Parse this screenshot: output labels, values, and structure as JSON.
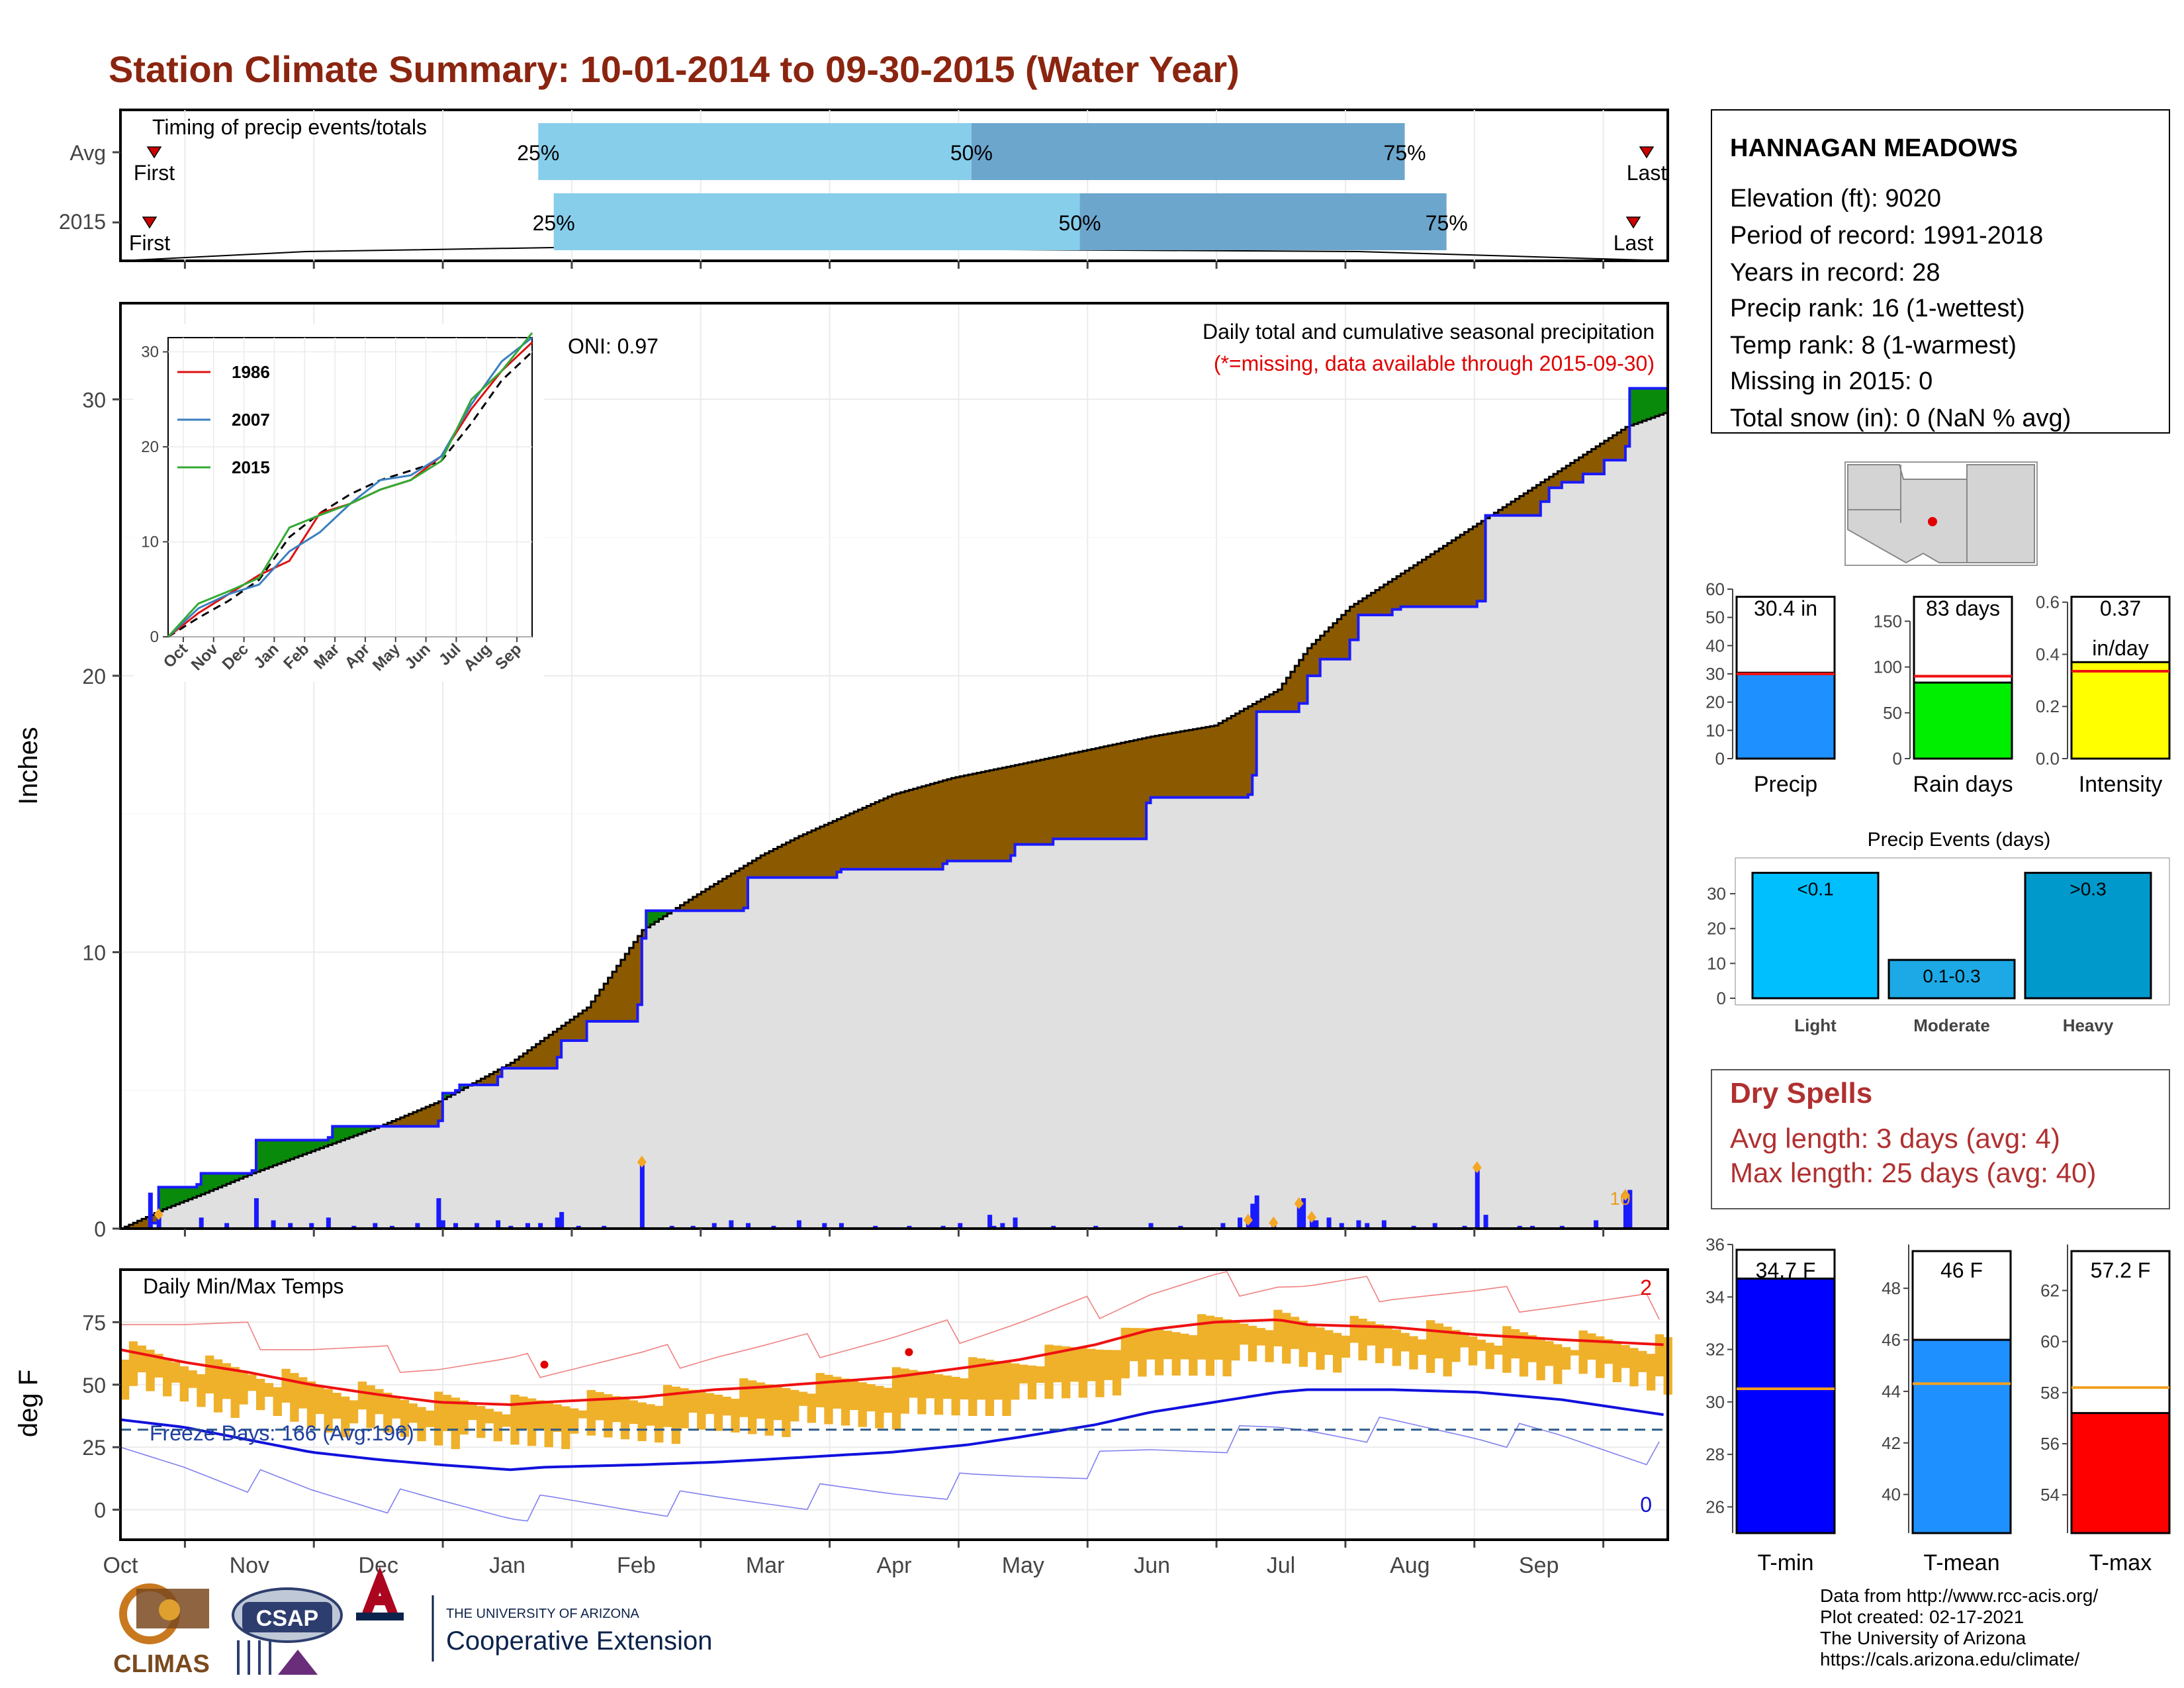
{
  "title": "Station Climate Summary: 10-01-2014 to 09-30-2015 (Water Year)",
  "timing": {
    "label": "Timing of precip events/totals",
    "rows": [
      {
        "name": "Avg",
        "p25": 0.27,
        "p50": 0.55,
        "p75": 0.83,
        "first_label": "First",
        "last_label": "Last"
      },
      {
        "name": "2015",
        "p25": 0.28,
        "p50": 0.62,
        "p75": 0.857,
        "first_label": "First",
        "last_label": "Last"
      }
    ],
    "labels": {
      "p25": "25%",
      "p50": "50%",
      "p75": "75%"
    },
    "colors": {
      "light": "#87ceeb",
      "dark": "#6ca6cd",
      "marker": "#cc0000"
    }
  },
  "precip_panel": {
    "ylabel": "Inches",
    "annotation": "Daily total and cumulative seasonal precipitation",
    "missing_note": "(*=missing, data available through 2015-09-30)",
    "oni": "ONI: 0.97",
    "yticks": [
      "0",
      "10",
      "20",
      "30"
    ],
    "top_value_label": "10"
  },
  "inset": {
    "legend": [
      {
        "year": "1986",
        "color": "#dd1111"
      },
      {
        "year": "2007",
        "color": "#3a7fc0"
      },
      {
        "year": "2015",
        "color": "#33aa33"
      }
    ],
    "yticks": [
      "0",
      "10",
      "20",
      "30"
    ],
    "xticks": [
      "Oct",
      "Nov",
      "Dec",
      "Jan",
      "Feb",
      "Mar",
      "Apr",
      "May",
      "Jun",
      "Jul",
      "Aug",
      "Sep"
    ]
  },
  "chart_data": {
    "type": "area",
    "title": "Daily total and cumulative seasonal precipitation",
    "ylabel": "Inches",
    "ylim": [
      0,
      33
    ],
    "x_unit": "day of water year (0 = Oct 1)",
    "cumulative_avg": {
      "x": [
        0,
        10,
        20,
        31,
        45,
        61,
        75,
        92,
        100,
        110,
        123,
        135,
        151,
        160,
        182,
        196,
        212,
        243,
        258,
        273,
        280,
        290,
        300,
        310,
        330,
        355,
        364
      ],
      "y": [
        0,
        0.7,
        1.3,
        2.0,
        2.8,
        3.7,
        4.6,
        6.0,
        6.9,
        8.0,
        10.8,
        12.0,
        13.5,
        14.2,
        15.7,
        16.3,
        16.8,
        17.8,
        18.2,
        19.5,
        21.0,
        22.5,
        23.5,
        24.5,
        26.5,
        29.0,
        29.5
      ]
    },
    "cumulative_2015": {
      "x": [
        0,
        7,
        9,
        18,
        19,
        31,
        32,
        49,
        50,
        75,
        76,
        79,
        80,
        89,
        90,
        103,
        104,
        110,
        122,
        123,
        124,
        147,
        148,
        169,
        170,
        194,
        195,
        210,
        211,
        220,
        242,
        243,
        266,
        267,
        268,
        278,
        280,
        283,
        290,
        292,
        300,
        302,
        320,
        322,
        335,
        337,
        340,
        345,
        350,
        355,
        356,
        364
      ],
      "y": [
        0,
        0.2,
        1.5,
        1.6,
        2.0,
        2.1,
        3.2,
        3.3,
        3.7,
        3.9,
        4.9,
        5.0,
        5.2,
        5.5,
        5.8,
        6.2,
        6.8,
        7.5,
        8.1,
        10.5,
        11.5,
        11.6,
        12.7,
        12.9,
        13.0,
        13.2,
        13.3,
        13.5,
        13.9,
        14.1,
        15.4,
        15.6,
        15.7,
        16.4,
        18.7,
        19.0,
        20.0,
        20.6,
        21.3,
        22.2,
        22.4,
        22.5,
        22.7,
        25.8,
        26.3,
        26.8,
        27.0,
        27.3,
        27.8,
        28.3,
        30.4,
        30.4
      ]
    },
    "daily_2015": {
      "x": [
        7,
        9,
        19,
        25,
        32,
        36,
        40,
        45,
        49,
        55,
        60,
        64,
        70,
        75,
        76,
        79,
        84,
        89,
        92,
        96,
        99,
        103,
        104,
        108,
        114,
        123,
        130,
        135,
        140,
        144,
        148,
        154,
        160,
        166,
        170,
        178,
        186,
        194,
        198,
        205,
        206,
        208,
        211,
        220,
        230,
        243,
        250,
        260,
        264,
        266,
        267,
        268,
        272,
        278,
        279,
        281,
        282,
        285,
        288,
        292,
        294,
        298,
        305,
        310,
        317,
        320,
        322,
        330,
        333,
        340,
        348,
        355,
        356
      ],
      "y": [
        1.3,
        0.5,
        0.4,
        0.2,
        1.1,
        0.3,
        0.2,
        0.2,
        0.4,
        0.1,
        0.2,
        0.1,
        0.2,
        1.1,
        0.3,
        0.2,
        0.2,
        0.3,
        0.1,
        0.2,
        0.2,
        0.4,
        0.6,
        0.1,
        0.1,
        2.4,
        0.1,
        0.1,
        0.2,
        0.3,
        0.2,
        0.1,
        0.3,
        0.2,
        0.2,
        0.1,
        0.1,
        0.1,
        0.2,
        0.5,
        0.1,
        0.2,
        0.4,
        0.1,
        0.1,
        0.2,
        0.1,
        0.2,
        0.4,
        0.3,
        0.9,
        1.2,
        0.2,
        0.9,
        1.1,
        0.4,
        0.3,
        0.4,
        0.2,
        0.3,
        0.2,
        0.3,
        0.1,
        0.2,
        0.1,
        2.2,
        0.5,
        0.1,
        0.1,
        0.1,
        0.3,
        1.2,
        1.4
      ]
    },
    "daily_top_markers_x": [
      9,
      123,
      266,
      272,
      278,
      281,
      320,
      355
    ],
    "inset_series": {
      "x_months": [
        0,
        1,
        2,
        3,
        4,
        5,
        6,
        7,
        8,
        9,
        10,
        11,
        12
      ],
      "avg": [
        0,
        2.0,
        3.8,
        6.0,
        10.5,
        13.0,
        15.0,
        16.5,
        17.5,
        18.5,
        22.5,
        27.0,
        30.0
      ],
      "1986": [
        0,
        2.5,
        4.5,
        6.5,
        8.0,
        13.0,
        14.0,
        15.5,
        16.5,
        19.0,
        24.0,
        28.0,
        31.0
      ],
      "2007": [
        0,
        3.0,
        4.5,
        5.5,
        9.0,
        11.0,
        14.0,
        16.5,
        17.0,
        19.0,
        24.5,
        29.0,
        31.5
      ],
      "2015": [
        0,
        3.5,
        4.8,
        6.2,
        11.5,
        12.8,
        14.0,
        15.5,
        16.5,
        18.5,
        25.0,
        28.0,
        32.0
      ]
    }
  },
  "temps_panel": {
    "ylabel": "deg F",
    "label": "Daily Min/Max Temps",
    "freeze_label": "Freeze Days: 166 (Avg:196)",
    "record_high_count": "2",
    "record_low_count": "0",
    "yticks": [
      "0",
      "25",
      "50",
      "75"
    ],
    "freeze_line_value": 32,
    "avg_max_x": [
      0,
      15,
      30,
      45,
      61,
      75,
      92,
      100,
      123,
      140,
      151,
      182,
      200,
      212,
      230,
      243,
      258,
      273,
      280,
      300,
      320,
      340,
      364
    ],
    "avg_max_y": [
      64,
      59,
      55,
      50,
      46,
      43,
      42,
      43,
      45,
      48,
      49,
      53,
      57,
      60,
      66,
      72,
      75,
      76,
      74,
      73,
      70,
      68,
      66
    ],
    "avg_min_x": [
      0,
      15,
      30,
      45,
      61,
      75,
      92,
      100,
      123,
      140,
      151,
      182,
      200,
      212,
      230,
      243,
      258,
      273,
      280,
      300,
      320,
      340,
      364
    ],
    "avg_min_y": [
      36,
      33,
      28,
      23,
      20,
      18,
      16,
      17,
      18,
      19,
      20,
      23,
      26,
      29,
      34,
      39,
      43,
      47,
      48,
      48,
      47,
      44,
      38
    ],
    "record_high_y": 80,
    "record_low_y": 10
  },
  "months": [
    "Oct",
    "Nov",
    "Dec",
    "Jan",
    "Feb",
    "Mar",
    "Apr",
    "May",
    "Jun",
    "Jul",
    "Aug",
    "Sep"
  ],
  "station": {
    "name": "HANNAGAN MEADOWS",
    "elevation": "Elevation (ft): 9020",
    "period": "Period of record: 1991-2018",
    "years": "Years in record: 28",
    "precip_rank": "Precip rank: 16 (1-wettest)",
    "temp_rank": "Temp rank: 8 (1-warmest)",
    "missing": "Missing in 2015: 0",
    "snow": "Total snow (in): 0 (NaN % avg)"
  },
  "stat_bars": [
    {
      "label": "Precip",
      "value_text": "30.4 in",
      "value": 30.4,
      "avg": 30.0,
      "ymax": 60,
      "ticks": [
        "0",
        "10",
        "20",
        "30",
        "40",
        "50",
        "60"
      ],
      "color": "#1e90ff"
    },
    {
      "label": "Rain days",
      "value_text": "83 days",
      "value": 83,
      "avg": 90,
      "ymax": 185,
      "ticks": [
        "0",
        "50",
        "100",
        "150"
      ],
      "color": "#00ee00"
    },
    {
      "label": "Intensity",
      "value_text": "0.37",
      "value_text2": "in/day",
      "value": 0.37,
      "avg": 0.335,
      "ymax": 0.65,
      "ticks": [
        "0.0",
        "0.2",
        "0.4",
        "0.6"
      ],
      "color": "#ffff00"
    }
  ],
  "precip_events": {
    "title": "Precip Events (days)",
    "categories": [
      "Light",
      "Moderate",
      "Heavy"
    ],
    "bar_labels": [
      "<0.1",
      "0.1-0.3",
      ">0.3"
    ],
    "values": [
      36,
      11,
      36
    ],
    "yticks": [
      "0",
      "10",
      "20",
      "30"
    ],
    "colors": [
      "#00bfff",
      "#1ca9e6",
      "#0099cc"
    ]
  },
  "dry_spells": {
    "title": "Dry Spells",
    "avg_length": "Avg length: 3 days (avg: 4)",
    "max_length": "Max length: 25 days (avg: 40)"
  },
  "temp_bars": [
    {
      "label": "T-min",
      "value_text": "34.7 F",
      "value": 34.7,
      "avg": 30.5,
      "ymin": 25,
      "ymax": 36,
      "ticks": [
        "26",
        "28",
        "30",
        "32",
        "34",
        "36"
      ],
      "color": "#0000ff"
    },
    {
      "label": "T-mean",
      "value_text": "46 F",
      "value": 46.0,
      "avg": 44.3,
      "ymin": 38.5,
      "ymax": 49.7,
      "ticks": [
        "40",
        "42",
        "44",
        "46",
        "48"
      ],
      "color": "#1e90ff"
    },
    {
      "label": "T-max",
      "value_text": "57.2 F",
      "value": 57.2,
      "avg": 58.2,
      "ymin": 52.5,
      "ymax": 63.8,
      "ticks": [
        "54",
        "56",
        "58",
        "60",
        "62"
      ],
      "color": "#ff0000"
    }
  ],
  "footer": {
    "line1": "Data from http://www.rcc-acis.org/",
    "line2": "Plot created: 02-17-2021",
    "line3": "The University of Arizona",
    "line4": "https://cals.arizona.edu/climate/"
  },
  "logos": {
    "climas": "CLIMAS",
    "csap": "CSAP",
    "ua_small": "THE UNIVERSITY OF ARIZONA",
    "ua_big": "Cooperative Extension"
  }
}
